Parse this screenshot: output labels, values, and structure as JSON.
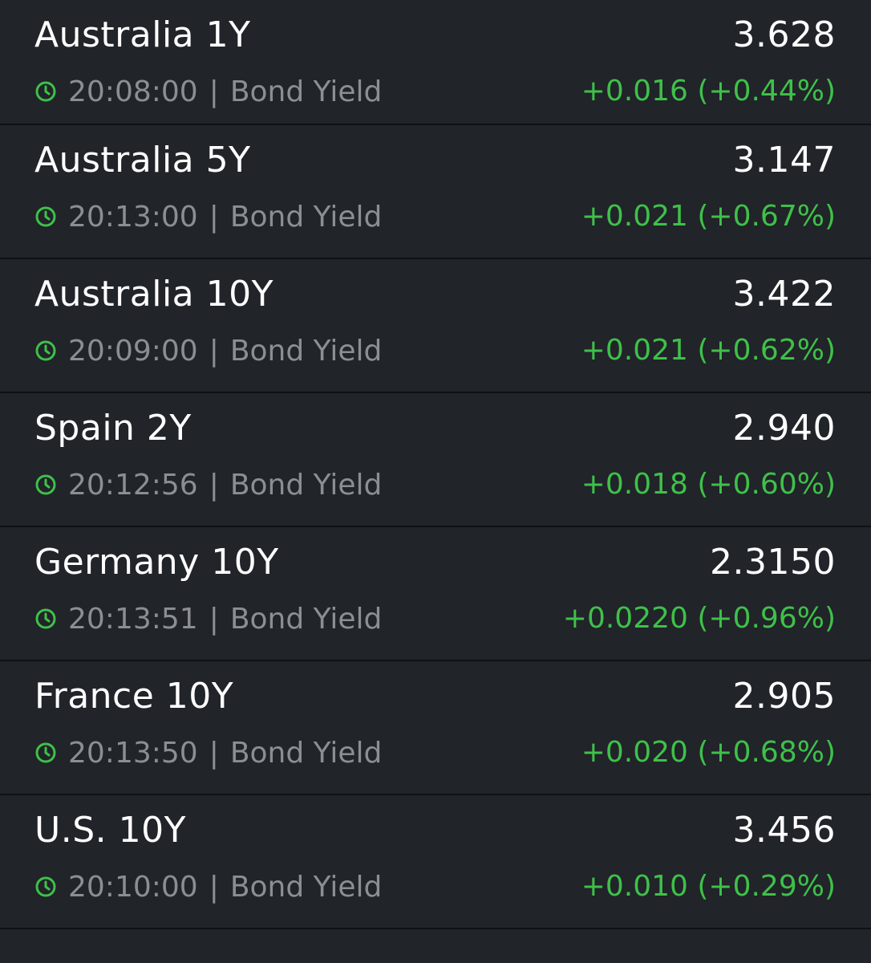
{
  "colors": {
    "background": "#212429",
    "divider": "#0f1114",
    "primary_text": "#ffffff",
    "secondary_text": "#8b8e93",
    "positive": "#3fc04a"
  },
  "rows": [
    {
      "name": "Australia 1Y",
      "price": "3.628",
      "time": "20:08:00",
      "separator": "|",
      "type": "Bond Yield",
      "change": "+0.016 (+0.44%)",
      "icon": "clock-icon"
    },
    {
      "name": "Australia 5Y",
      "price": "3.147",
      "time": "20:13:00",
      "separator": "|",
      "type": "Bond Yield",
      "change": "+0.021 (+0.67%)",
      "icon": "clock-icon"
    },
    {
      "name": "Australia 10Y",
      "price": "3.422",
      "time": "20:09:00",
      "separator": "|",
      "type": "Bond Yield",
      "change": "+0.021 (+0.62%)",
      "icon": "clock-icon"
    },
    {
      "name": "Spain 2Y",
      "price": "2.940",
      "time": "20:12:56",
      "separator": "|",
      "type": "Bond Yield",
      "change": "+0.018 (+0.60%)",
      "icon": "clock-icon"
    },
    {
      "name": "Germany 10Y",
      "price": "2.3150",
      "time": "20:13:51",
      "separator": "|",
      "type": "Bond Yield",
      "change": "+0.0220 (+0.96%)",
      "icon": "clock-icon"
    },
    {
      "name": "France 10Y",
      "price": "2.905",
      "time": "20:13:50",
      "separator": "|",
      "type": "Bond Yield",
      "change": "+0.020 (+0.68%)",
      "icon": "clock-icon"
    },
    {
      "name": "U.S. 10Y",
      "price": "3.456",
      "time": "20:10:00",
      "separator": "|",
      "type": "Bond Yield",
      "change": "+0.010 (+0.29%)",
      "icon": "clock-icon"
    }
  ]
}
